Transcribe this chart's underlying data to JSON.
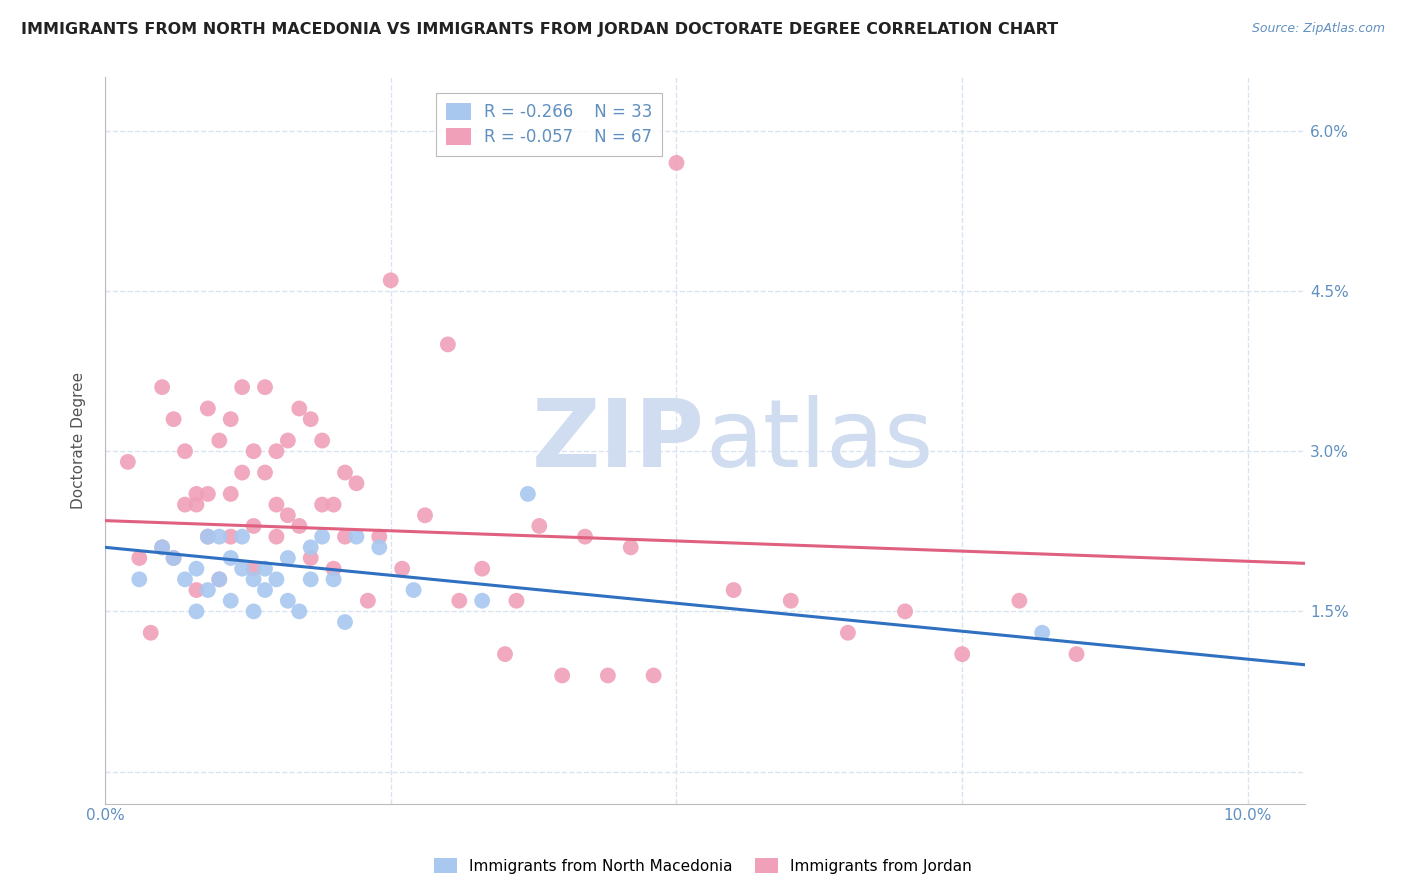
{
  "title": "IMMIGRANTS FROM NORTH MACEDONIA VS IMMIGRANTS FROM JORDAN DOCTORATE DEGREE CORRELATION CHART",
  "source": "Source: ZipAtlas.com",
  "ylabel": "Doctorate Degree",
  "yticks": [
    0.0,
    0.015,
    0.03,
    0.045,
    0.06
  ],
  "ytick_labels_left": [
    "",
    "",
    "",
    "",
    ""
  ],
  "ytick_labels_right": [
    "",
    "1.5%",
    "3.0%",
    "4.5%",
    "6.0%"
  ],
  "xticks": [
    0.0,
    0.025,
    0.05,
    0.075,
    0.1
  ],
  "xtick_labels": [
    "0.0%",
    "",
    "",
    "",
    "10.0%"
  ],
  "xlim": [
    0.0,
    0.105
  ],
  "ylim": [
    -0.003,
    0.065
  ],
  "legend1_R": "-0.266",
  "legend1_N": "33",
  "legend2_R": "-0.057",
  "legend2_N": "67",
  "color_blue": "#A8C8F0",
  "color_pink": "#F0A0B8",
  "trendline_blue": "#3070C0",
  "trendline_pink": "#E06080",
  "watermark_zip": "ZIP",
  "watermark_atlas": "atlas",
  "watermark_color": "#D0DCF0",
  "grid_color": "#D8E4F0",
  "background_color": "#FFFFFF",
  "title_fontsize": 11.5,
  "axis_label_color": "#6090C0",
  "blue_scatter_x": [
    0.003,
    0.005,
    0.006,
    0.007,
    0.008,
    0.008,
    0.009,
    0.009,
    0.01,
    0.01,
    0.011,
    0.011,
    0.012,
    0.012,
    0.013,
    0.013,
    0.014,
    0.014,
    0.015,
    0.016,
    0.016,
    0.017,
    0.018,
    0.018,
    0.019,
    0.02,
    0.021,
    0.022,
    0.024,
    0.027,
    0.033,
    0.037,
    0.082
  ],
  "blue_scatter_y": [
    0.018,
    0.021,
    0.02,
    0.018,
    0.015,
    0.019,
    0.017,
    0.022,
    0.018,
    0.022,
    0.016,
    0.02,
    0.019,
    0.022,
    0.015,
    0.018,
    0.017,
    0.019,
    0.018,
    0.02,
    0.016,
    0.015,
    0.018,
    0.021,
    0.022,
    0.018,
    0.014,
    0.022,
    0.021,
    0.017,
    0.016,
    0.026,
    0.013
  ],
  "pink_scatter_x": [
    0.002,
    0.003,
    0.004,
    0.005,
    0.005,
    0.006,
    0.006,
    0.007,
    0.007,
    0.008,
    0.008,
    0.008,
    0.009,
    0.009,
    0.009,
    0.01,
    0.01,
    0.011,
    0.011,
    0.011,
    0.012,
    0.012,
    0.013,
    0.013,
    0.013,
    0.014,
    0.014,
    0.015,
    0.015,
    0.015,
    0.016,
    0.016,
    0.017,
    0.017,
    0.018,
    0.018,
    0.019,
    0.019,
    0.02,
    0.02,
    0.021,
    0.021,
    0.022,
    0.023,
    0.024,
    0.025,
    0.026,
    0.028,
    0.03,
    0.031,
    0.033,
    0.035,
    0.036,
    0.038,
    0.04,
    0.042,
    0.044,
    0.046,
    0.048,
    0.05,
    0.055,
    0.06,
    0.065,
    0.07,
    0.075,
    0.08,
    0.085
  ],
  "pink_scatter_y": [
    0.029,
    0.02,
    0.013,
    0.036,
    0.021,
    0.033,
    0.02,
    0.025,
    0.03,
    0.026,
    0.025,
    0.017,
    0.034,
    0.022,
    0.026,
    0.031,
    0.018,
    0.033,
    0.026,
    0.022,
    0.036,
    0.028,
    0.03,
    0.023,
    0.019,
    0.036,
    0.028,
    0.03,
    0.025,
    0.022,
    0.031,
    0.024,
    0.034,
    0.023,
    0.033,
    0.02,
    0.025,
    0.031,
    0.025,
    0.019,
    0.028,
    0.022,
    0.027,
    0.016,
    0.022,
    0.046,
    0.019,
    0.024,
    0.04,
    0.016,
    0.019,
    0.011,
    0.016,
    0.023,
    0.009,
    0.022,
    0.009,
    0.021,
    0.009,
    0.057,
    0.017,
    0.016,
    0.013,
    0.015,
    0.011,
    0.016,
    0.011
  ]
}
